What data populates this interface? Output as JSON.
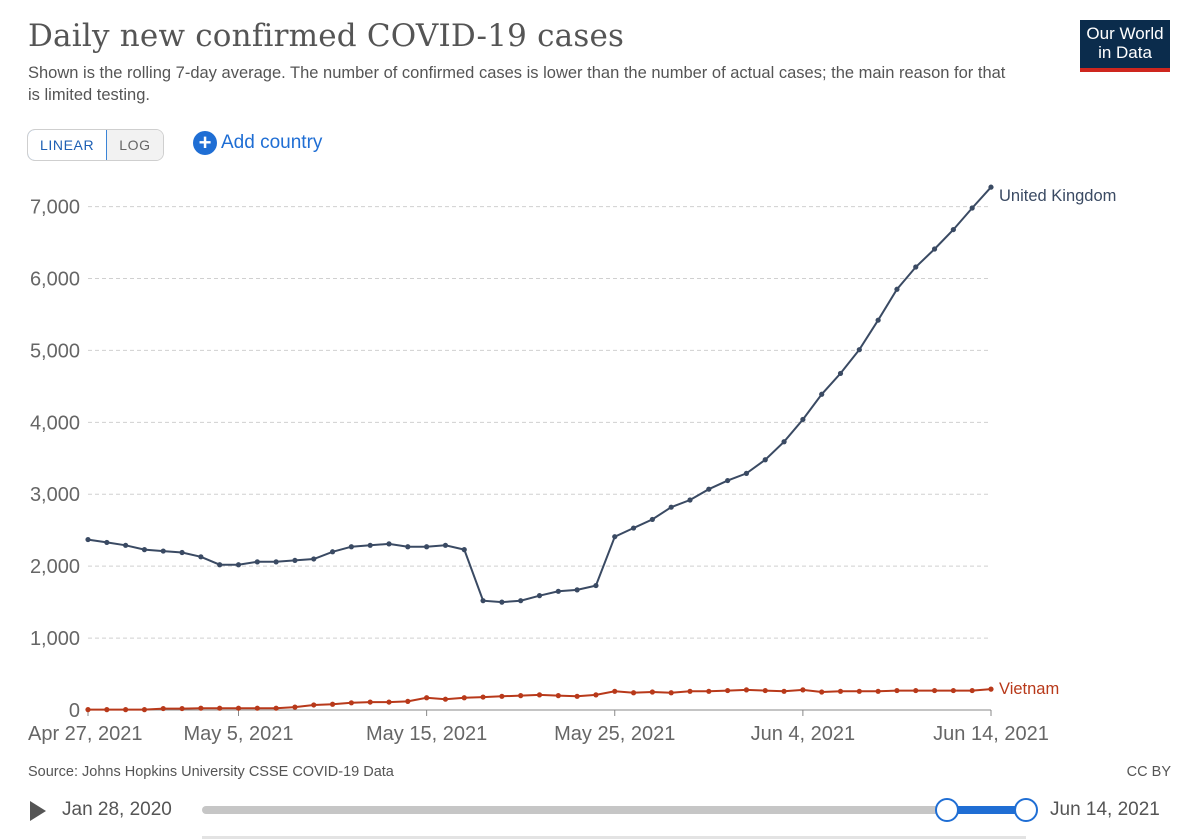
{
  "header": {
    "title": "Daily new confirmed COVID-19 cases",
    "subtitle": "Shown is the rolling 7-day average. The number of confirmed cases is lower than the number of actual cases; the main reason for that is limited testing.",
    "logo_line1": "Our World",
    "logo_line2": "in Data"
  },
  "controls": {
    "linear_label": "LINEAR",
    "log_label": "LOG",
    "add_country_label": "Add country",
    "add_icon": "plus-circle-icon"
  },
  "footer": {
    "source": "Source: Johns Hopkins University CSSE COVID-19 Data",
    "license": "CC BY"
  },
  "timeline": {
    "start_label": "Jan 28, 2020",
    "end_label": "Jun 14, 2021",
    "play_icon": "play-icon"
  },
  "colors": {
    "uk": "#3a4a63",
    "vietnam": "#b8391a",
    "accent": "#1f6ed4",
    "grid": "#d0d0d0"
  },
  "chart_data": {
    "type": "line",
    "title": "Daily new confirmed COVID-19 cases",
    "xlabel": "",
    "ylabel": "",
    "ylim": [
      0,
      7300
    ],
    "grid": true,
    "yticks": [
      0,
      1000,
      2000,
      3000,
      4000,
      5000,
      6000,
      7000
    ],
    "ytick_labels": [
      "0",
      "1,000",
      "2,000",
      "3,000",
      "4,000",
      "5,000",
      "6,000",
      "7,000"
    ],
    "xticks": [
      {
        "date": "2021-04-27",
        "label": "Apr 27, 2021"
      },
      {
        "date": "2021-05-05",
        "label": "May 5, 2021"
      },
      {
        "date": "2021-05-15",
        "label": "May 15, 2021"
      },
      {
        "date": "2021-05-25",
        "label": "May 25, 2021"
      },
      {
        "date": "2021-06-04",
        "label": "Jun 4, 2021"
      },
      {
        "date": "2021-06-14",
        "label": "Jun 14, 2021"
      }
    ],
    "x": [
      "2021-04-27",
      "2021-04-28",
      "2021-04-29",
      "2021-04-30",
      "2021-05-01",
      "2021-05-02",
      "2021-05-03",
      "2021-05-04",
      "2021-05-05",
      "2021-05-06",
      "2021-05-07",
      "2021-05-08",
      "2021-05-09",
      "2021-05-10",
      "2021-05-11",
      "2021-05-12",
      "2021-05-13",
      "2021-05-14",
      "2021-05-15",
      "2021-05-16",
      "2021-05-17",
      "2021-05-18",
      "2021-05-19",
      "2021-05-20",
      "2021-05-21",
      "2021-05-22",
      "2021-05-23",
      "2021-05-24",
      "2021-05-25",
      "2021-05-26",
      "2021-05-27",
      "2021-05-28",
      "2021-05-29",
      "2021-05-30",
      "2021-05-31",
      "2021-06-01",
      "2021-06-02",
      "2021-06-03",
      "2021-06-04",
      "2021-06-05",
      "2021-06-06",
      "2021-06-07",
      "2021-06-08",
      "2021-06-09",
      "2021-06-10",
      "2021-06-11",
      "2021-06-12",
      "2021-06-13",
      "2021-06-14"
    ],
    "series": [
      {
        "name": "United Kingdom",
        "values": [
          2370,
          2330,
          2290,
          2230,
          2210,
          2190,
          2130,
          2020,
          2020,
          2060,
          2060,
          2080,
          2100,
          2200,
          2270,
          2290,
          2310,
          2270,
          2270,
          2290,
          2230,
          1520,
          1500,
          1520,
          1590,
          1650,
          1670,
          1730,
          2410,
          2530,
          2650,
          2820,
          2920,
          3070,
          3190,
          3290,
          3480,
          3730,
          4040,
          4390,
          4680,
          5010,
          5420,
          5850,
          6160,
          6410,
          6680,
          6980,
          7270
        ]
      },
      {
        "name": "Vietnam",
        "values": [
          5,
          5,
          5,
          5,
          20,
          20,
          25,
          25,
          25,
          25,
          25,
          40,
          70,
          80,
          100,
          110,
          110,
          120,
          170,
          150,
          170,
          180,
          190,
          200,
          210,
          200,
          190,
          210,
          260,
          240,
          250,
          240,
          260,
          260,
          270,
          280,
          270,
          260,
          280,
          250,
          260,
          260,
          260,
          270,
          270,
          270,
          270,
          270,
          290
        ]
      }
    ]
  }
}
